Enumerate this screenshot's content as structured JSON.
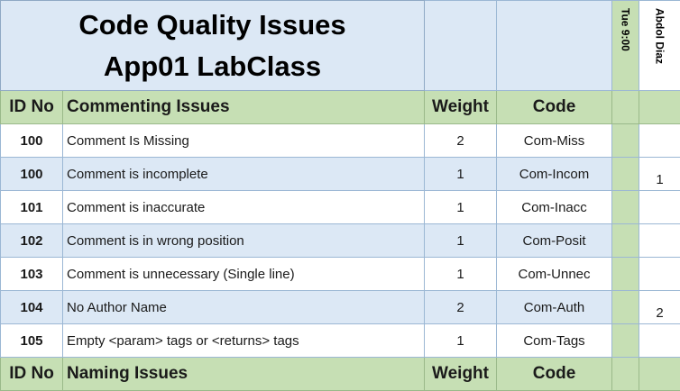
{
  "title": {
    "line1": "Code Quality Issues",
    "line2": "App01 LabClass"
  },
  "session_label": "Tue 9:00",
  "student_name": "Abdol Diaz",
  "sections": [
    {
      "headers": {
        "id": "ID No",
        "issue": "Commenting Issues",
        "weight": "Weight",
        "code": "Code"
      },
      "rows": [
        {
          "id": "100",
          "issue": "Comment Is Missing",
          "weight": "2",
          "code": "Com-Miss",
          "mark": ""
        },
        {
          "id": "100",
          "issue": "Comment is incomplete",
          "weight": "1",
          "code": "Com-Incom",
          "mark": "1"
        },
        {
          "id": "101",
          "issue": "Comment is inaccurate",
          "weight": "1",
          "code": "Com-Inacc",
          "mark": ""
        },
        {
          "id": "102",
          "issue": "Comment is in wrong position",
          "weight": "1",
          "code": "Com-Posit",
          "mark": ""
        },
        {
          "id": "103",
          "issue": "Comment is unnecessary (Single line)",
          "weight": "1",
          "code": "Com-Unnec",
          "mark": ""
        },
        {
          "id": "104",
          "issue": "No Author Name",
          "weight": "2",
          "code": "Com-Auth",
          "mark": "2"
        },
        {
          "id": "105",
          "issue": "Empty <param> tags or <returns> tags",
          "weight": "1",
          "code": "Com-Tags",
          "mark": ""
        }
      ]
    },
    {
      "headers": {
        "id": "ID No",
        "issue": "Naming Issues",
        "weight": "Weight",
        "code": "Code"
      }
    }
  ],
  "colors": {
    "blue_fill": "#dce8f5",
    "green_fill": "#c6dfb4",
    "grid_line": "#9bb7d4"
  }
}
